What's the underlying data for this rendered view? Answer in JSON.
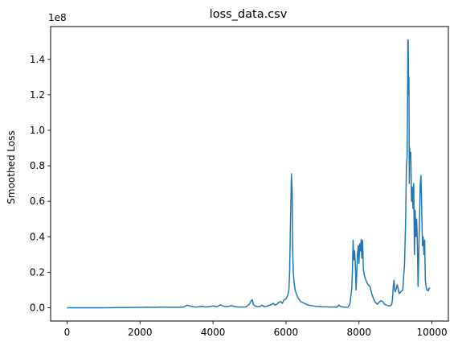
{
  "chart_data": {
    "type": "line",
    "title": "loss_data.csv",
    "xlabel": "",
    "ylabel": "Smoothed Loss",
    "y_offset_text": "1e8",
    "xlim": [
      -450,
      10450
    ],
    "ylim": [
      -0.075,
      1.585
    ],
    "x_ticks": [
      0,
      2000,
      4000,
      6000,
      8000,
      10000
    ],
    "x_tick_labels": [
      "0",
      "2000",
      "4000",
      "6000",
      "8000",
      "10000"
    ],
    "y_ticks": [
      0.0,
      0.2,
      0.4,
      0.6,
      0.8,
      1.0,
      1.2,
      1.4
    ],
    "y_tick_labels": [
      "0.0",
      "0.2",
      "0.4",
      "0.6",
      "0.8",
      "1.0",
      "1.2",
      "1.4"
    ],
    "grid": false,
    "legend": "none",
    "color": "#1f77b4",
    "series": [
      {
        "x": [
          0,
          500,
          1000,
          1500,
          2000,
          2200,
          2400,
          2600,
          2800,
          3000,
          3200,
          3300,
          3350,
          3400,
          3500,
          3600,
          3700,
          3800,
          3900,
          4000,
          4100,
          4150,
          4200,
          4300,
          4400,
          4500,
          4600,
          4700,
          4800,
          4900,
          5000,
          5050,
          5080,
          5100,
          5150,
          5200,
          5300,
          5350,
          5400,
          5500,
          5600,
          5650,
          5700,
          5750,
          5800,
          5850,
          5900,
          5950,
          6000,
          6050,
          6080,
          6100,
          6120,
          6140,
          6150,
          6160,
          6170,
          6180,
          6200,
          6220,
          6250,
          6300,
          6350,
          6400,
          6500,
          6550,
          6600,
          6700,
          6800,
          6900,
          7000,
          7100,
          7200,
          7300,
          7400,
          7450,
          7500,
          7600,
          7700,
          7750,
          7800,
          7820,
          7840,
          7860,
          7880,
          7900,
          7920,
          7940,
          7960,
          7980,
          8000,
          8020,
          8040,
          8060,
          8080,
          8100,
          8120,
          8150,
          8200,
          8250,
          8300,
          8350,
          8400,
          8450,
          8500,
          8550,
          8600,
          8650,
          8700,
          8750,
          8800,
          8850,
          8900,
          8920,
          8940,
          8960,
          8980,
          9000,
          9050,
          9100,
          9150,
          9200,
          9250,
          9280,
          9300,
          9320,
          9330,
          9340,
          9350,
          9360,
          9370,
          9380,
          9390,
          9400,
          9420,
          9440,
          9460,
          9480,
          9500,
          9520,
          9540,
          9560,
          9580,
          9600,
          9620,
          9640,
          9660,
          9680,
          9700,
          9720,
          9740,
          9760,
          9780,
          9800,
          9820,
          9840,
          9860,
          9880,
          9900,
          9920,
          9950
        ],
        "y": [
          0.0,
          0.0,
          0.0,
          0.001,
          0.002,
          0.003,
          0.002,
          0.004,
          0.003,
          0.002,
          0.004,
          0.015,
          0.01,
          0.008,
          0.004,
          0.005,
          0.008,
          0.004,
          0.006,
          0.01,
          0.006,
          0.01,
          0.016,
          0.008,
          0.006,
          0.012,
          0.006,
          0.004,
          0.004,
          0.005,
          0.02,
          0.04,
          0.045,
          0.02,
          0.01,
          0.006,
          0.008,
          0.015,
          0.006,
          0.01,
          0.018,
          0.025,
          0.015,
          0.02,
          0.03,
          0.035,
          0.025,
          0.045,
          0.05,
          0.07,
          0.1,
          0.2,
          0.45,
          0.65,
          0.755,
          0.7,
          0.65,
          0.35,
          0.2,
          0.15,
          0.1,
          0.07,
          0.05,
          0.035,
          0.025,
          0.02,
          0.015,
          0.012,
          0.008,
          0.007,
          0.005,
          0.005,
          0.004,
          0.004,
          0.003,
          0.015,
          0.006,
          0.003,
          0.004,
          0.02,
          0.1,
          0.2,
          0.38,
          0.27,
          0.32,
          0.25,
          0.1,
          0.2,
          0.3,
          0.35,
          0.25,
          0.36,
          0.32,
          0.385,
          0.28,
          0.38,
          0.22,
          0.18,
          0.15,
          0.13,
          0.12,
          0.08,
          0.05,
          0.03,
          0.02,
          0.03,
          0.04,
          0.035,
          0.02,
          0.015,
          0.012,
          0.01,
          0.02,
          0.05,
          0.12,
          0.155,
          0.1,
          0.09,
          0.13,
          0.08,
          0.09,
          0.1,
          0.25,
          0.5,
          0.8,
          0.85,
          1.1,
          1.51,
          1.5,
          1.2,
          1.3,
          0.7,
          0.9,
          0.85,
          0.875,
          0.6,
          0.68,
          0.56,
          0.7,
          0.3,
          0.55,
          0.4,
          0.5,
          0.38,
          0.12,
          0.3,
          0.5,
          0.7,
          0.745,
          0.55,
          0.35,
          0.4,
          0.3,
          0.38,
          0.15,
          0.12,
          0.1,
          0.1,
          0.095,
          0.11,
          0.11
        ]
      }
    ]
  }
}
